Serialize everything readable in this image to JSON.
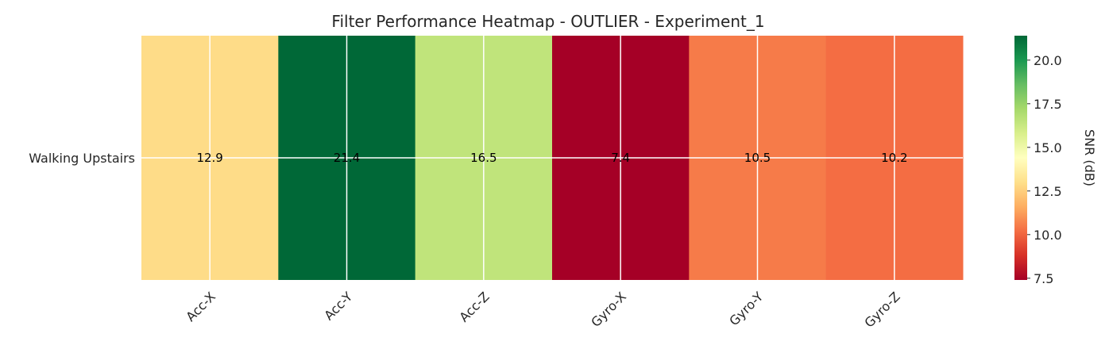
{
  "chart_data": {
    "type": "heatmap",
    "title": "Filter Performance Heatmap - OUTLIER - Experiment_1",
    "rows": [
      "Walking Upstairs"
    ],
    "columns": [
      "Acc-X",
      "Acc-Y",
      "Acc-Z",
      "Gyro-X",
      "Gyro-Y",
      "Gyro-Z"
    ],
    "values": [
      [
        12.9,
        21.4,
        16.5,
        7.4,
        10.5,
        10.2
      ]
    ],
    "value_labels": [
      [
        "12.9",
        "21.4",
        "16.5",
        "7.4",
        "10.5",
        "10.2"
      ]
    ],
    "colorbar": {
      "label": "SNR (dB)",
      "range": [
        7.4,
        21.4
      ],
      "ticks": [
        7.5,
        10.0,
        12.5,
        15.0,
        17.5,
        20.0
      ],
      "tick_labels": [
        "7.5",
        "10.0",
        "12.5",
        "15.0",
        "17.5",
        "20.0"
      ],
      "colormap": "RdYlGn"
    },
    "grid": true
  }
}
